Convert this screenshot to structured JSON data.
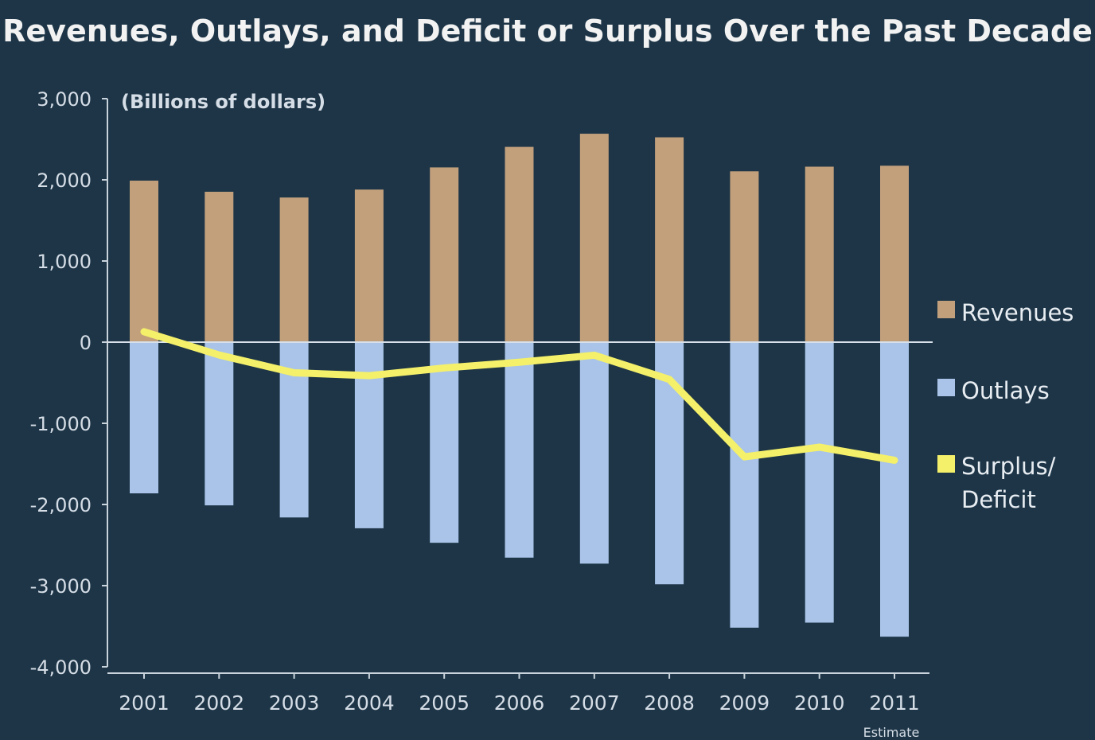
{
  "chart_data": {
    "type": "bar",
    "title": "Revenues, Outlays, and Deficit or Surplus Over the Past Decade",
    "unit_label": "(Billions of dollars)",
    "categories": [
      "2001",
      "2002",
      "2003",
      "2004",
      "2005",
      "2006",
      "2007",
      "2008",
      "2009",
      "2010",
      "2011"
    ],
    "last_category_note": "Estimate",
    "ylim": [
      -4000,
      3000
    ],
    "yticks": [
      3000,
      2000,
      1000,
      0,
      -1000,
      -2000,
      -3000,
      -4000
    ],
    "ytick_labels": [
      "3,000",
      "2,000",
      "1,000",
      "0",
      "-1,000",
      "-2,000",
      "-3,000",
      "-4,000"
    ],
    "series": [
      {
        "name": "Revenues",
        "kind": "bar",
        "color": "#c2a07c",
        "values": [
          1990,
          1853,
          1782,
          1880,
          2153,
          2406,
          2568,
          2524,
          2105,
          2162,
          2174
        ]
      },
      {
        "name": "Outlays",
        "kind": "bar",
        "color": "#a9c4e8",
        "values": [
          -1863,
          -2011,
          -2160,
          -2293,
          -2472,
          -2655,
          -2729,
          -2983,
          -3518,
          -3456,
          -3629
        ]
      },
      {
        "name": "Surplus/ Deficit",
        "kind": "line",
        "color": "#f4f06a",
        "values": [
          128,
          -158,
          -377,
          -413,
          -318,
          -248,
          -161,
          -459,
          -1413,
          -1294,
          -1455
        ]
      }
    ],
    "legend_position": "right",
    "grid": false
  }
}
